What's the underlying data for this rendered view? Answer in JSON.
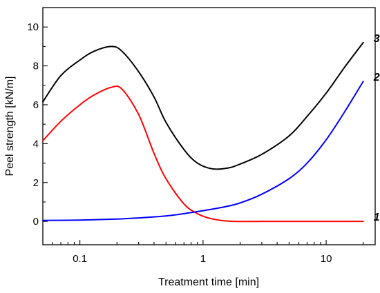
{
  "chart_data": {
    "type": "line",
    "title": "",
    "xlabel": "Treatment time [min]",
    "ylabel": "Peel strength [kN/m]",
    "xscale": "log",
    "xlim": [
      0.05,
      25
    ],
    "ylim": [
      -1.2,
      11
    ],
    "xticks": [
      {
        "value": 0.1,
        "label": "0.1"
      },
      {
        "value": 1,
        "label": "1"
      },
      {
        "value": 10,
        "label": "10"
      }
    ],
    "xminor": [
      0.06,
      0.07,
      0.08,
      0.09,
      0.2,
      0.3,
      0.4,
      0.5,
      0.6,
      0.7,
      0.8,
      0.9,
      2,
      3,
      4,
      5,
      6,
      7,
      8,
      9,
      20
    ],
    "yticks": [
      {
        "value": 0,
        "label": "0"
      },
      {
        "value": 2,
        "label": "2"
      },
      {
        "value": 4,
        "label": "4"
      },
      {
        "value": 6,
        "label": "6"
      },
      {
        "value": 8,
        "label": "8"
      },
      {
        "value": 10,
        "label": "10"
      }
    ],
    "grid": false,
    "legend": "none",
    "series": [
      {
        "name": "1",
        "color": "#ff0000",
        "x": [
          0.05,
          0.07,
          0.1,
          0.13,
          0.18,
          0.22,
          0.3,
          0.4,
          0.5,
          0.7,
          0.9,
          1.1,
          1.4,
          1.8,
          3,
          5,
          10,
          20
        ],
        "y": [
          4.15,
          5.15,
          6.0,
          6.5,
          6.9,
          6.8,
          5.5,
          3.5,
          2.2,
          0.9,
          0.4,
          0.18,
          0.05,
          0.0,
          0.0,
          0.0,
          0.0,
          0.0
        ]
      },
      {
        "name": "2",
        "color": "#0000ff",
        "x": [
          0.05,
          0.1,
          0.2,
          0.3,
          0.5,
          0.7,
          1,
          1.5,
          2,
          3,
          5,
          7,
          10,
          14,
          20
        ],
        "y": [
          0.05,
          0.07,
          0.12,
          0.18,
          0.28,
          0.4,
          0.55,
          0.75,
          0.95,
          1.4,
          2.2,
          3.0,
          4.2,
          5.6,
          7.2
        ]
      },
      {
        "name": "3",
        "color": "#000000",
        "x": [
          0.05,
          0.07,
          0.1,
          0.13,
          0.18,
          0.22,
          0.3,
          0.4,
          0.5,
          0.7,
          0.9,
          1.2,
          1.6,
          2,
          3,
          5,
          7,
          10,
          14,
          20
        ],
        "y": [
          6.15,
          7.5,
          8.3,
          8.75,
          9.0,
          8.75,
          7.7,
          6.4,
          5.1,
          3.7,
          3.0,
          2.7,
          2.75,
          2.95,
          3.45,
          4.4,
          5.4,
          6.6,
          7.9,
          9.2
        ]
      }
    ],
    "curve_labels": [
      {
        "text": "1",
        "series": "1"
      },
      {
        "text": "2",
        "series": "2"
      },
      {
        "text": "3",
        "series": "3"
      }
    ]
  }
}
